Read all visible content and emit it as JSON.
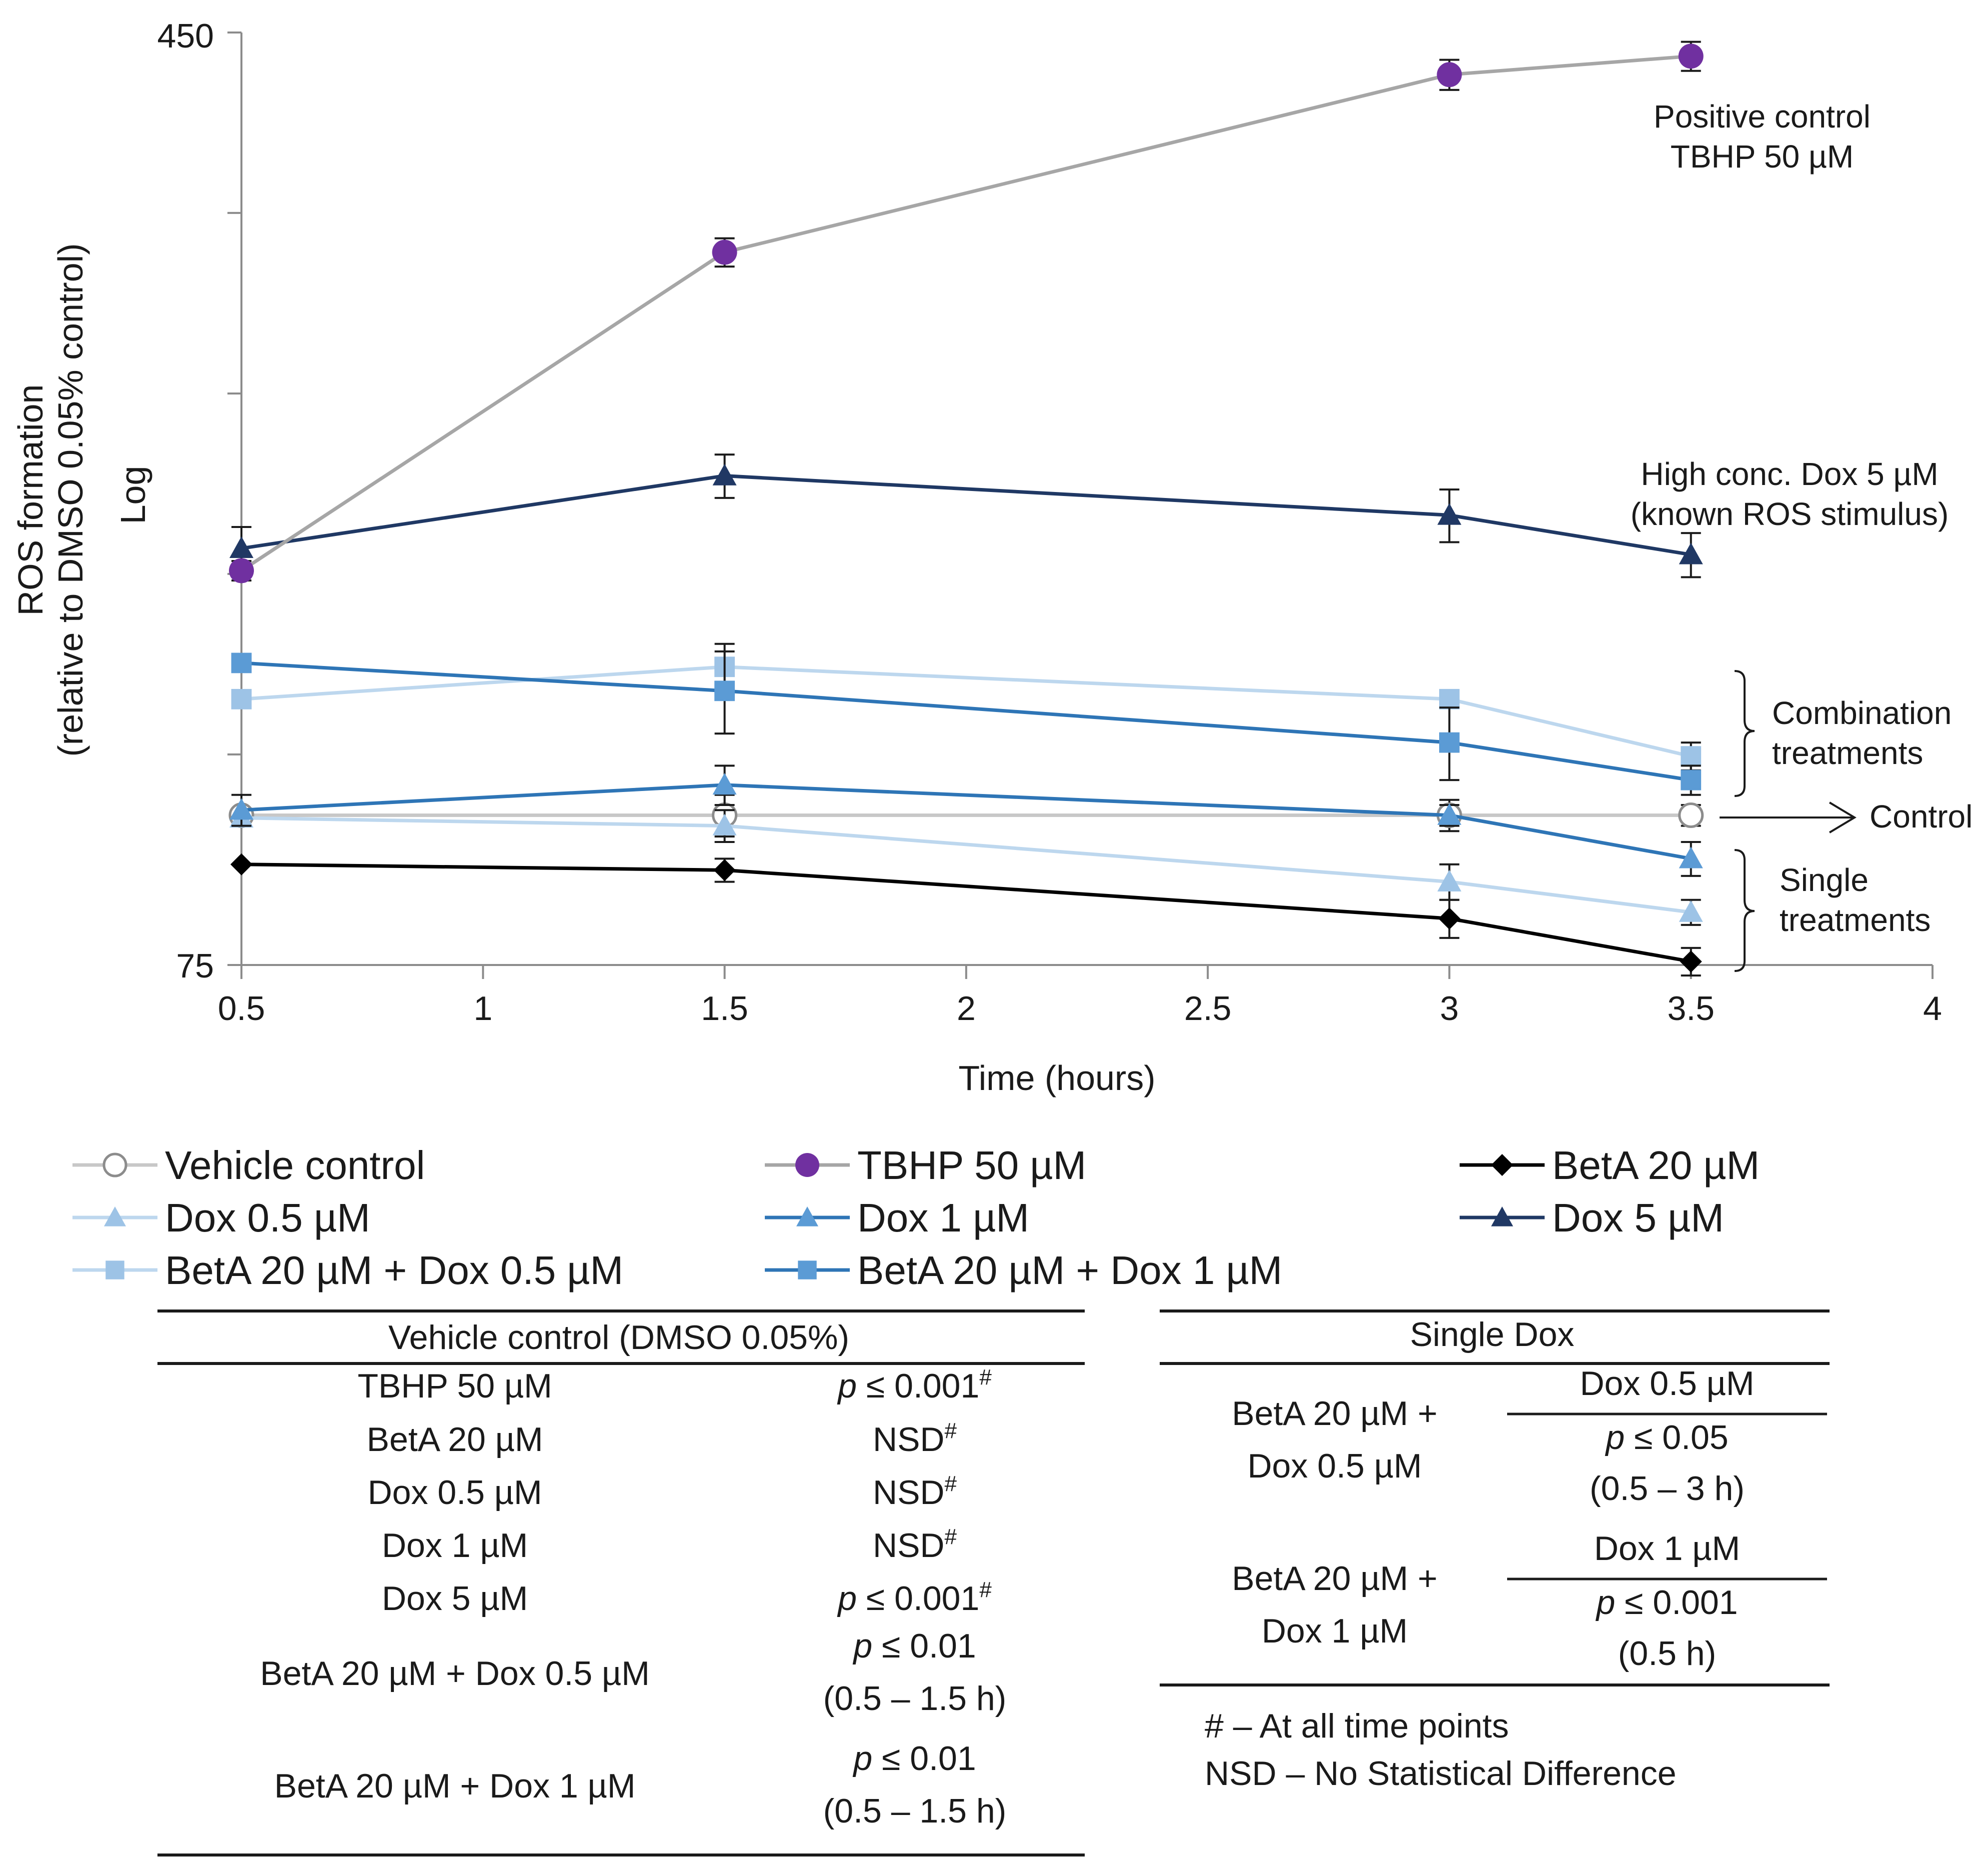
{
  "chart_data": {
    "type": "line",
    "title": "",
    "xlabel": "Time (hours)",
    "ylabel": "ROS formation (relative to DMSO 0.05% control)",
    "ylabel_scale": "Log",
    "y_scale": "log",
    "xlim": [
      0.5,
      4
    ],
    "ylim": [
      75,
      450
    ],
    "x_ticks": [
      "0.5",
      "1",
      "1.5",
      "2",
      "2.5",
      "3",
      "3.5",
      "4"
    ],
    "y_ticks": [
      "75",
      "450"
    ],
    "x": [
      0.5,
      1.5,
      3,
      3.5
    ],
    "series": [
      {
        "key": "vehicle",
        "name": "Vehicle control",
        "color": "#c8c8c8",
        "marker": "circle-open",
        "values": [
          100,
          100,
          100,
          100
        ],
        "err": [
          0,
          4,
          3,
          2
        ]
      },
      {
        "key": "tbhp",
        "name": "TBHP 50 µM",
        "color": "#a6a6a6",
        "marker_color": "#7030a0",
        "marker": "circle",
        "values": [
          160,
          295,
          415,
          430
        ],
        "err": [
          3,
          8,
          12,
          12
        ]
      },
      {
        "key": "beta",
        "name": "BetA 20 µM",
        "color": "#000000",
        "marker": "diamond",
        "values": [
          91,
          90,
          82,
          75.5
        ],
        "err": [
          0,
          2,
          3,
          2
        ]
      },
      {
        "key": "dox05",
        "name": "Dox 0.5 µM",
        "color": "#bdd7ee",
        "marker_color": "#9dc3e6",
        "marker": "triangle",
        "values": [
          99.5,
          98,
          88,
          83
        ],
        "err": [
          0,
          3,
          3,
          2
        ]
      },
      {
        "key": "dox1",
        "name": "Dox 1 µM",
        "color": "#2e75b6",
        "marker_color": "#5b9bd5",
        "marker": "triangle",
        "values": [
          101,
          106,
          100,
          92
        ],
        "err": [
          3,
          4,
          2,
          3
        ]
      },
      {
        "key": "dox5",
        "name": "Dox 5 µM",
        "color": "#1f3864",
        "marker_color": "#203864",
        "marker": "triangle",
        "values": [
          167,
          192,
          178,
          165
        ],
        "err": [
          7,
          8,
          9,
          7
        ]
      },
      {
        "key": "combo05",
        "name": "BetA 20 µM + Dox 0.5 µM",
        "color": "#bdd7ee",
        "marker_color": "#9dc3e6",
        "marker": "square",
        "values": [
          125,
          133,
          125,
          112
        ],
        "err": [
          0,
          6,
          2,
          3
        ]
      },
      {
        "key": "combo1",
        "name": "BetA 20 µM + Dox 1 µM",
        "color": "#2e75b6",
        "marker_color": "#5b9bd5",
        "marker": "square",
        "values": [
          134,
          127,
          115,
          107
        ],
        "err": [
          0,
          10,
          8,
          3
        ]
      }
    ],
    "annotations": {
      "positive_control": [
        "Positive control",
        "TBHP 50 µM"
      ],
      "high_dox": [
        "High conc. Dox 5 µM",
        "(known ROS stimulus)"
      ],
      "combination": [
        "Combination",
        "treatments"
      ],
      "control": "Control",
      "single": [
        "Single",
        "treatments"
      ]
    }
  },
  "legend": [
    {
      "key": "vehicle",
      "label": "Vehicle control"
    },
    {
      "key": "tbhp",
      "label": "TBHP 50 µM"
    },
    {
      "key": "beta",
      "label": "BetA 20 µM"
    },
    {
      "key": "dox05",
      "label": "Dox 0.5 µM"
    },
    {
      "key": "dox1",
      "label": "Dox 1 µM"
    },
    {
      "key": "dox5",
      "label": "Dox 5 µM"
    },
    {
      "key": "combo05",
      "label": "BetA 20 µM + Dox 0.5 µM"
    },
    {
      "key": "combo1",
      "label": "BetA 20 µM + Dox 1 µM"
    }
  ],
  "table_left": {
    "header": "Vehicle control (DMSO 0.05%)",
    "rows": [
      {
        "treatment": "TBHP 50 µM",
        "p": "p",
        "val": " ≤ 0.001",
        "sup": "#"
      },
      {
        "treatment": "BetA 20 µM",
        "p": "",
        "val": "NSD",
        "sup": "#"
      },
      {
        "treatment": "Dox 0.5 µM",
        "p": "",
        "val": "NSD",
        "sup": "#"
      },
      {
        "treatment": "Dox 1 µM",
        "p": "",
        "val": "NSD",
        "sup": "#"
      },
      {
        "treatment": "Dox 5 µM",
        "p": "p",
        "val": " ≤ 0.001",
        "sup": "#"
      },
      {
        "treatment": "BetA 20 µM + Dox 0.5 µM",
        "p": "p",
        "val": " ≤ 0.01",
        "sup": "",
        "range": "(0.5 – 1.5 h)"
      },
      {
        "treatment": "BetA 20 µM + Dox 1 µM",
        "p": "p",
        "val": " ≤ 0.01",
        "sup": "",
        "range": "(0.5 – 1.5 h)"
      }
    ]
  },
  "table_right": {
    "header": "Single Dox",
    "blocks": [
      {
        "treatment": [
          "BetA 20 µM +",
          "Dox 0.5 µM"
        ],
        "compare": "Dox 0.5 µM",
        "p": "p",
        "val": " ≤ 0.05",
        "range": "(0.5 – 3 h)"
      },
      {
        "treatment": [
          "BetA 20 µM +",
          "Dox 1 µM"
        ],
        "compare": "Dox 1 µM",
        "p": "p",
        "val": " ≤ 0.001",
        "range": "(0.5 h)"
      }
    ],
    "notes": [
      "# – At all time points",
      "NSD – No Statistical Difference"
    ]
  }
}
